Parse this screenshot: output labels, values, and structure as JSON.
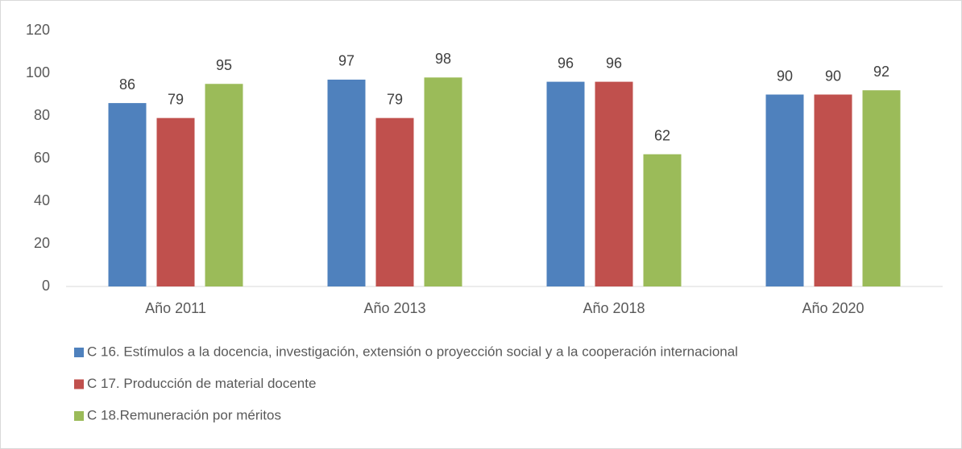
{
  "chart_data": {
    "type": "bar",
    "categories": [
      "Año 2011",
      "Año 2013",
      "Año 2018",
      "Año 2020"
    ],
    "series": [
      {
        "name": "C 16. Estímulos a la docencia, investigación, extensión o proyección social y a la cooperación internacional",
        "color": "#4f81bd",
        "values": [
          86,
          97,
          96,
          90
        ]
      },
      {
        "name": "C 17. Producción de material docente",
        "color": "#c0504d",
        "values": [
          79,
          79,
          96,
          90
        ]
      },
      {
        "name": "C 18.Remuneración por méritos",
        "color": "#9bbb59",
        "values": [
          95,
          98,
          62,
          92
        ]
      }
    ],
    "ylim": [
      0,
      120
    ],
    "yticks": [
      0,
      20,
      40,
      60,
      80,
      100,
      120
    ],
    "grid": false,
    "legend": "bottom"
  }
}
